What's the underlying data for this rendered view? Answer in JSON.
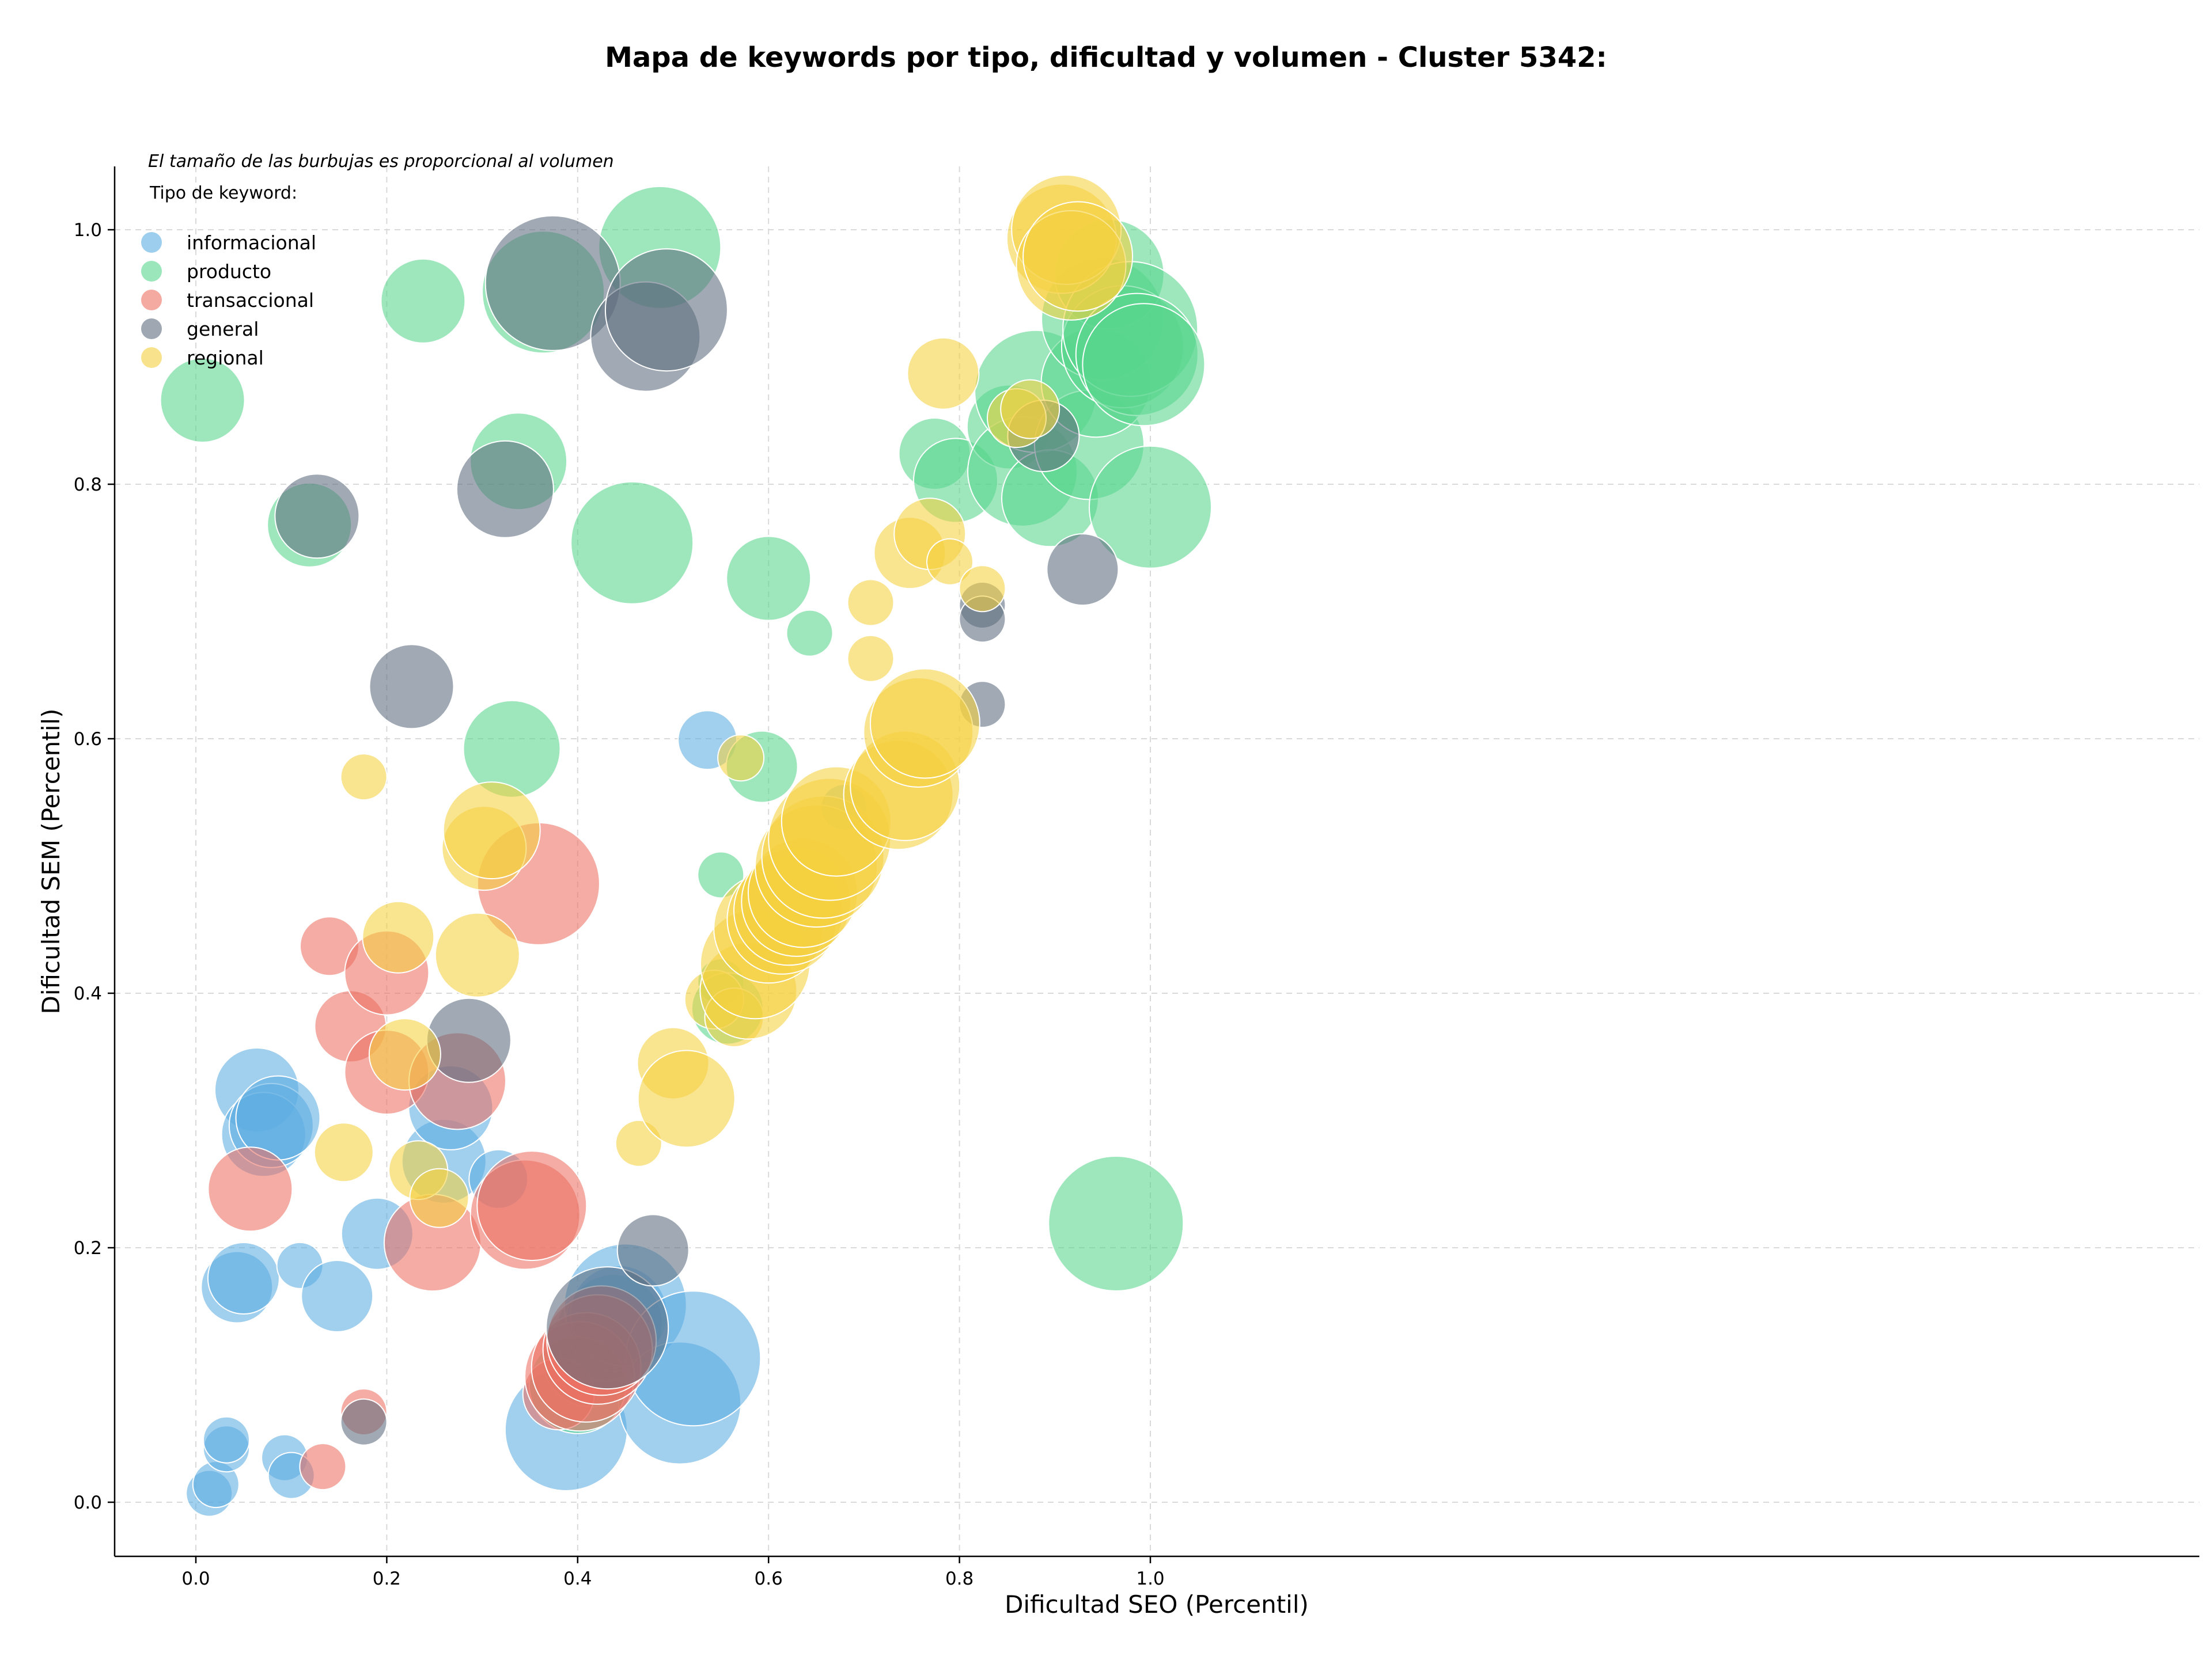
{
  "chart_data": {
    "type": "scatter",
    "title": "Mapa de keywords por tipo, dificultad y volumen - Cluster 5342:",
    "xlabel": "Dificultad SEO (Percentil)",
    "ylabel": "Dificultad SEM (Percentil)",
    "note": "El tamaño de las burbujas es proporcional al volumen",
    "legend_title": "Tipo de keyword:",
    "legend_position": "top-left",
    "grid": true,
    "xlim": [
      -0.04,
      1.05
    ],
    "ylim": [
      -0.04,
      1.05
    ],
    "xticks": [
      "0.0",
      "0.2",
      "0.4",
      "0.6",
      "0.8",
      "1.0"
    ],
    "yticks": [
      "0.0",
      "0.2",
      "0.4",
      "0.6",
      "0.8",
      "1.0"
    ],
    "xtick_values": [
      0,
      0.2,
      0.4,
      0.6,
      0.8,
      1.0
    ],
    "ytick_values": [
      0,
      0.2,
      0.4,
      0.6,
      0.8,
      1.0
    ],
    "series": [
      {
        "name": "informacional",
        "color": "#5DADE2",
        "points": [
          [
            0.014,
            0.007,
            2
          ],
          [
            0.021,
            0.014,
            2
          ],
          [
            0.032,
            0.042,
            2
          ],
          [
            0.032,
            0.049,
            2
          ],
          [
            0.043,
            0.169,
            4
          ],
          [
            0.05,
            0.176,
            4
          ],
          [
            0.064,
            0.324,
            5
          ],
          [
            0.071,
            0.289,
            5
          ],
          [
            0.079,
            0.296,
            5
          ],
          [
            0.086,
            0.302,
            5
          ],
          [
            0.093,
            0.035,
            2
          ],
          [
            0.1,
            0.021,
            2
          ],
          [
            0.109,
            0.186,
            2
          ],
          [
            0.148,
            0.162,
            4
          ],
          [
            0.19,
            0.211,
            4
          ],
          [
            0.26,
            0.268,
            5
          ],
          [
            0.267,
            0.31,
            5
          ],
          [
            0.317,
            0.254,
            3
          ],
          [
            0.388,
            0.057,
            8
          ],
          [
            0.414,
            0.113,
            6
          ],
          [
            0.428,
            0.133,
            6
          ],
          [
            0.438,
            0.141,
            6
          ],
          [
            0.443,
            0.148,
            6
          ],
          [
            0.45,
            0.155,
            8
          ],
          [
            0.507,
            0.078,
            8
          ],
          [
            0.521,
            0.113,
            9
          ],
          [
            0.536,
            0.599,
            3
          ],
          [
            0.679,
            0.546,
            2
          ]
        ]
      },
      {
        "name": "producto",
        "color": "#58D68D",
        "points": [
          [
            0.007,
            0.866,
            5
          ],
          [
            0.119,
            0.768,
            5
          ],
          [
            0.238,
            0.944,
            5
          ],
          [
            0.331,
            0.592,
            6
          ],
          [
            0.338,
            0.818,
            6
          ],
          [
            0.364,
            0.951,
            8
          ],
          [
            0.4,
            0.092,
            6
          ],
          [
            0.457,
            0.754,
            8
          ],
          [
            0.486,
            0.986,
            8
          ],
          [
            0.55,
            0.493,
            2
          ],
          [
            0.55,
            0.409,
            2
          ],
          [
            0.557,
            0.388,
            4
          ],
          [
            0.593,
            0.578,
            4
          ],
          [
            0.6,
            0.726,
            5
          ],
          [
            0.643,
            0.683,
            2
          ],
          [
            0.774,
            0.824,
            4
          ],
          [
            0.796,
            0.803,
            5
          ],
          [
            0.852,
            0.845,
            5
          ],
          [
            0.866,
            0.81,
            7
          ],
          [
            0.88,
            0.873,
            8
          ],
          [
            0.895,
            0.789,
            6
          ],
          [
            0.936,
            0.831,
            7
          ],
          [
            0.943,
            0.88,
            7
          ],
          [
            0.95,
            0.93,
            8
          ],
          [
            0.957,
            0.965,
            7
          ],
          [
            0.971,
            0.908,
            8
          ],
          [
            0.979,
            0.922,
            9
          ],
          [
            0.986,
            0.902,
            8
          ],
          [
            0.993,
            0.894,
            8
          ],
          [
            1.0,
            0.782,
            8
          ],
          [
            0.964,
            0.219,
            9
          ]
        ]
      },
      {
        "name": "transaccional",
        "color": "#EC7063",
        "points": [
          [
            0.057,
            0.246,
            5
          ],
          [
            0.133,
            0.028,
            2
          ],
          [
            0.14,
            0.437,
            3
          ],
          [
            0.162,
            0.374,
            4
          ],
          [
            0.176,
            0.071,
            2
          ],
          [
            0.2,
            0.338,
            5
          ],
          [
            0.2,
            0.416,
            5
          ],
          [
            0.248,
            0.204,
            6
          ],
          [
            0.274,
            0.331,
            6
          ],
          [
            0.345,
            0.226,
            7
          ],
          [
            0.352,
            0.233,
            7
          ],
          [
            0.359,
            0.486,
            8
          ],
          [
            0.38,
            0.085,
            4
          ],
          [
            0.402,
            0.099,
            7
          ],
          [
            0.409,
            0.106,
            7
          ],
          [
            0.421,
            0.12,
            7
          ],
          [
            0.425,
            0.127,
            7
          ]
        ]
      },
      {
        "name": "general",
        "color": "#5D6D7E",
        "points": [
          [
            0.127,
            0.775,
            5
          ],
          [
            0.176,
            0.063,
            2
          ],
          [
            0.226,
            0.641,
            5
          ],
          [
            0.286,
            0.363,
            5
          ],
          [
            0.324,
            0.796,
            6
          ],
          [
            0.374,
            0.958,
            9
          ],
          [
            0.431,
            0.137,
            8
          ],
          [
            0.471,
            0.916,
            7
          ],
          [
            0.479,
            0.198,
            4
          ],
          [
            0.493,
            0.937,
            8
          ],
          [
            0.824,
            0.705,
            2
          ],
          [
            0.824,
            0.694,
            2
          ],
          [
            0.824,
            0.627,
            2
          ],
          [
            0.888,
            0.838,
            4
          ],
          [
            0.929,
            0.733,
            4
          ]
        ]
      },
      {
        "name": "regional",
        "color": "#F4D03F",
        "points": [
          [
            0.155,
            0.275,
            3
          ],
          [
            0.176,
            0.57,
            2
          ],
          [
            0.212,
            0.444,
            4
          ],
          [
            0.219,
            0.352,
            4
          ],
          [
            0.233,
            0.261,
            3
          ],
          [
            0.255,
            0.239,
            3
          ],
          [
            0.295,
            0.43,
            5
          ],
          [
            0.302,
            0.514,
            5
          ],
          [
            0.31,
            0.528,
            6
          ],
          [
            0.464,
            0.282,
            2
          ],
          [
            0.5,
            0.345,
            4
          ],
          [
            0.514,
            0.317,
            6
          ],
          [
            0.543,
            0.395,
            3
          ],
          [
            0.564,
            0.381,
            3
          ],
          [
            0.571,
            0.585,
            2
          ],
          [
            0.579,
            0.402,
            6
          ],
          [
            0.586,
            0.423,
            7
          ],
          [
            0.6,
            0.451,
            7
          ],
          [
            0.614,
            0.458,
            7
          ],
          [
            0.621,
            0.465,
            7
          ],
          [
            0.629,
            0.472,
            7
          ],
          [
            0.636,
            0.479,
            7
          ],
          [
            0.65,
            0.5,
            8
          ],
          [
            0.657,
            0.507,
            8
          ],
          [
            0.664,
            0.521,
            8
          ],
          [
            0.671,
            0.535,
            7
          ],
          [
            0.707,
            0.663,
            2
          ],
          [
            0.707,
            0.707,
            2
          ],
          [
            0.736,
            0.556,
            7
          ],
          [
            0.743,
            0.563,
            7
          ],
          [
            0.748,
            0.746,
            4
          ],
          [
            0.757,
            0.605,
            7
          ],
          [
            0.764,
            0.612,
            7
          ],
          [
            0.769,
            0.761,
            4
          ],
          [
            0.783,
            0.887,
            4
          ],
          [
            0.79,
            0.739,
            2
          ],
          [
            0.824,
            0.718,
            2
          ],
          [
            0.86,
            0.852,
            3
          ],
          [
            0.874,
            0.859,
            3
          ],
          [
            0.907,
            0.993,
            7
          ],
          [
            0.912,
            1.0,
            7
          ],
          [
            0.917,
            0.972,
            7
          ],
          [
            0.924,
            0.979,
            7
          ]
        ]
      }
    ]
  }
}
